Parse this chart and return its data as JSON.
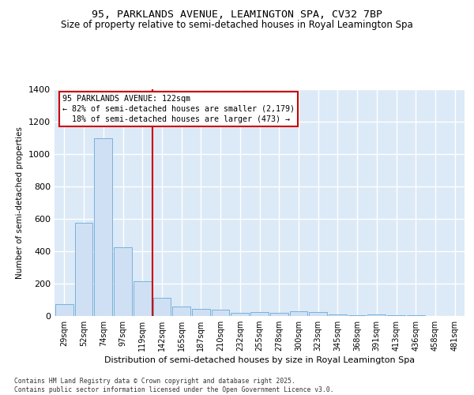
{
  "title": "95, PARKLANDS AVENUE, LEAMINGTON SPA, CV32 7BP",
  "subtitle": "Size of property relative to semi-detached houses in Royal Leamington Spa",
  "xlabel": "Distribution of semi-detached houses by size in Royal Leamington Spa",
  "ylabel": "Number of semi-detached properties",
  "categories": [
    "29sqm",
    "52sqm",
    "74sqm",
    "97sqm",
    "119sqm",
    "142sqm",
    "165sqm",
    "187sqm",
    "210sqm",
    "232sqm",
    "255sqm",
    "278sqm",
    "300sqm",
    "323sqm",
    "345sqm",
    "368sqm",
    "391sqm",
    "413sqm",
    "436sqm",
    "458sqm",
    "481sqm"
  ],
  "values": [
    75,
    575,
    1095,
    425,
    215,
    110,
    58,
    42,
    38,
    20,
    25,
    20,
    28,
    22,
    10,
    5,
    8,
    5,
    3,
    2,
    2
  ],
  "bar_color": "#cfe0f5",
  "bar_edge_color": "#6aaad4",
  "vline_x": 4.5,
  "vline_color": "#cc0000",
  "annotation_line1": "95 PARKLANDS AVENUE: 122sqm",
  "annotation_line2": "← 82% of semi-detached houses are smaller (2,179)",
  "annotation_line3": "  18% of semi-detached houses are larger (473) →",
  "background_color": "#dce9f7",
  "grid_color": "white",
  "ylim": [
    0,
    1400
  ],
  "yticks": [
    0,
    200,
    400,
    600,
    800,
    1000,
    1200,
    1400
  ],
  "footer": "Contains HM Land Registry data © Crown copyright and database right 2025.\nContains public sector information licensed under the Open Government Licence v3.0.",
  "title_fontsize": 9.5,
  "subtitle_fontsize": 8.5
}
